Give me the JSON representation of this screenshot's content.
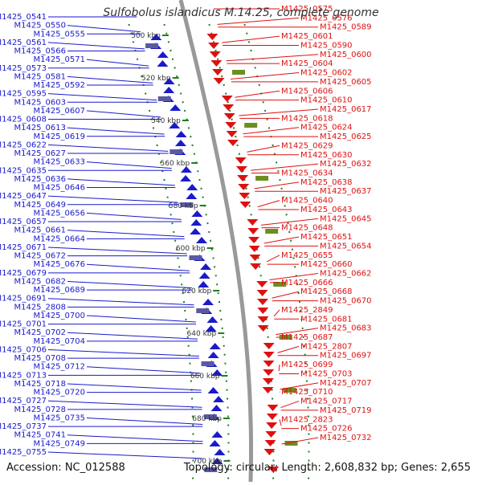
{
  "header": {
    "title": "Sulfobolus islandicus M.14.25, complete genome"
  },
  "footer": {
    "accession": "Accession: NC_012588",
    "topology": "Topology: circular; Length: 2,608,832 bp; Genes: 2,655"
  },
  "colors": {
    "left_genes": "#1a1acc",
    "right_genes": "#dd1111",
    "backbone": "#999999",
    "ruler": "#1f7f1f"
  },
  "scale": {
    "ticks": [
      "500 kbp",
      "520 kbp",
      "540 kbp",
      "560 kbp",
      "580 kbp",
      "600 kbp",
      "620 kbp",
      "640 kbp",
      "660 kbp",
      "680 kbp",
      "700 kbp"
    ]
  },
  "genes": {
    "left": [
      "M1425_0541",
      "M1425_0550",
      "M1425_0555",
      "M1425_0561",
      "M1425_0566",
      "M1425_0571",
      "M1425_0573",
      "M1425_0581",
      "M1425_0592",
      "M1425_0595",
      "M1425_0603",
      "M1425_0607",
      "M1425_0608",
      "M1425_0613",
      "M1425_0619",
      "M1425_0622",
      "M1425_0627",
      "M1425_0633",
      "M1425_0635",
      "M1425_0636",
      "M1425_0646",
      "M1425_0647",
      "M1425_0649",
      "M1425_0656",
      "M1425_0657",
      "M1425_0661",
      "M1425_0664",
      "M1425_0671",
      "M1425_0672",
      "M1425_0676",
      "M1425_0679",
      "M1425_0682",
      "M1425_0689",
      "M1425_0691",
      "M1425_2808",
      "M1425_0700",
      "M1425_0701",
      "M1425_0702",
      "M1425_0704",
      "M1425_0706",
      "M1425_0708",
      "M1425_0712",
      "M1425_0713",
      "M1425_0718",
      "M1425_0720",
      "M1425_0727",
      "M1425_0728",
      "M1425_0735",
      "M1425_0737",
      "M1425_0741",
      "M1425_0749",
      "M1425_0755"
    ],
    "right": [
      "M1425_0575",
      "M1425_0576",
      "M1425_0589",
      "M1425_0601",
      "M1425_0590",
      "M1425_0600",
      "M1425_0604",
      "M1425_0602",
      "M1425_0605",
      "M1425_0606",
      "M1425_0610",
      "M1425_0617",
      "M1425_0618",
      "M1425_0624",
      "M1425_0625",
      "M1425_0629",
      "M1425_0630",
      "M1425_0632",
      "M1425_0634",
      "M1425_0638",
      "M1425_0637",
      "M1425_0640",
      "M1425_0643",
      "M1425_0645",
      "M1425_0648",
      "M1425_0651",
      "M1425_0654",
      "M1425_0655",
      "M1425_0660",
      "M1425_0662",
      "M1425_0666",
      "M1425_0668",
      "M1425_0670",
      "M1425_2849",
      "M1425_0681",
      "M1425_0683",
      "M1425_0687",
      "M1425_2807",
      "M1425_0697",
      "M1425_0699",
      "M1425_0703",
      "M1425_0707",
      "M1425_0710",
      "M1425_0717",
      "M1425_0719",
      "M1425_2823",
      "M1425_0726",
      "M1425_0732"
    ]
  }
}
